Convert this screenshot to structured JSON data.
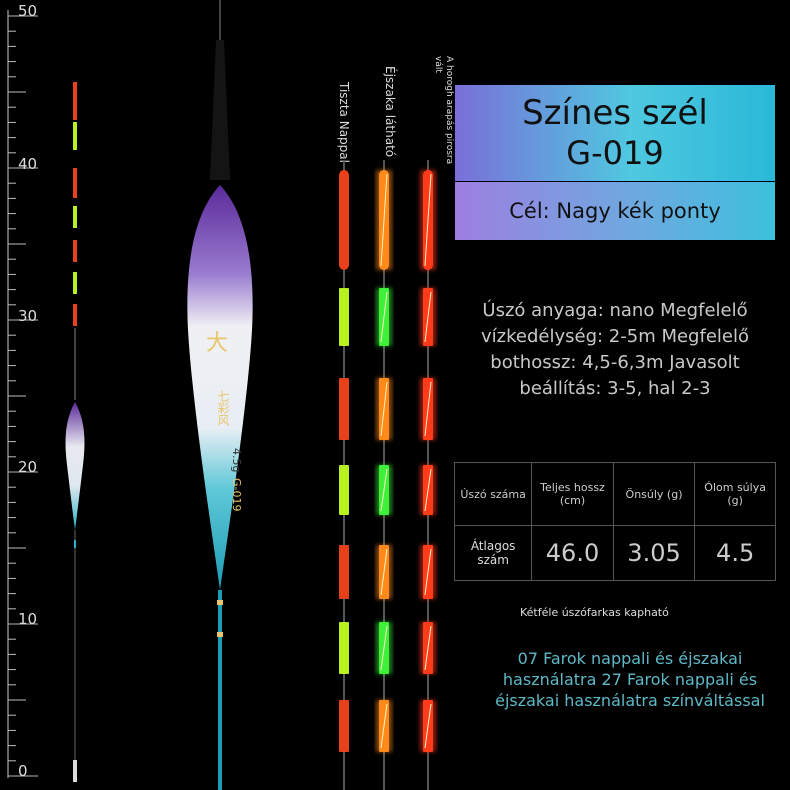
{
  "ruler": {
    "labels": [
      "50",
      "40",
      "30",
      "20",
      "10",
      "0"
    ]
  },
  "tip_labels": {
    "day": "Tiszta Nappal",
    "night": "Éjszaka látható",
    "color_change": "A horogh arapás pirosra vált"
  },
  "product": {
    "name": "Színes szél",
    "model": "G-019",
    "target": "Cél: Nagy kék ponty"
  },
  "description": {
    "lines": [
      "Úszó anyaga: nano Megfelelő",
      "vízkedélység: 2-5m Megfelelő",
      "bothossz: 4,5-6,3m Javasolt",
      "beállítás: 3-5, hal 2-3"
    ]
  },
  "spec_table": {
    "headers": [
      "Úszó száma",
      "Teljes hossz (cm)",
      "Önsúly (g)",
      "Ólom súlya (g)"
    ],
    "row_label": "Átlagos szám",
    "values": [
      "46.0",
      "3.05",
      "4.5"
    ]
  },
  "notes": {
    "small": "Kétféle úszófarkas kapható",
    "blue": "07 Farok nappali és éjszakai használatra 27 Farok nappali és éjszakai használatra színváltással"
  },
  "float_text": {
    "brand": "七彩风",
    "weight": "4.5g",
    "model": "G-019"
  },
  "colors": {
    "title_gradient_start": "#7a6fd8",
    "title_gradient_end": "#2ab8d8",
    "float_purple": "#5a2a9a",
    "float_teal": "#28b4c8",
    "tip_red": "#e8401a",
    "tip_yellow_green": "#b8f020",
    "night_orange": "#ff8a1a",
    "night_green": "#3ef03a",
    "night_red": "#ff3b1a",
    "note_blue": "#5fb8c8"
  }
}
